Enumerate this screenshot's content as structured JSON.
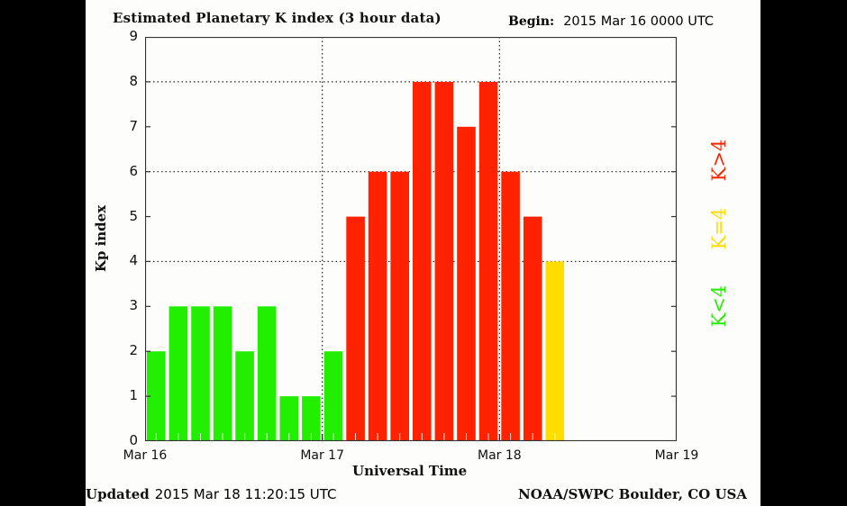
{
  "header": {
    "title": "Estimated Planetary K index (3 hour data)",
    "begin_label": "Begin:",
    "begin_value": "2015 Mar 16 0000 UTC"
  },
  "footer": {
    "updated_label": "Updated",
    "updated_value": "2015 Mar 18 11:20:15 UTC",
    "credit": "NOAA/SWPC Boulder, CO USA"
  },
  "legend": {
    "high": {
      "label": "K>4",
      "color": "#ff2200"
    },
    "equal": {
      "label": "K=4",
      "color": "#ffdd00"
    },
    "low": {
      "label": "K<4",
      "color": "#22ee00"
    }
  },
  "colors": {
    "low": "#22ee00",
    "equal": "#ffdd00",
    "high": "#ff2200",
    "background": "#fdfdfb",
    "frame": "#333333"
  },
  "chart_data": {
    "type": "bar",
    "title": "Estimated Planetary K index (3 hour data)",
    "xlabel": "Universal Time",
    "ylabel": "Kp index",
    "ylim": [
      0,
      9
    ],
    "yticks": [
      0,
      1,
      2,
      3,
      4,
      5,
      6,
      7,
      8,
      9
    ],
    "gridlines_y": [
      4,
      6,
      8
    ],
    "xticks": [
      "Mar 16",
      "Mar 17",
      "Mar 18",
      "Mar 19"
    ],
    "bar_interval_hours": 3,
    "categories": [
      "Mar 16 00",
      "Mar 16 03",
      "Mar 16 06",
      "Mar 16 09",
      "Mar 16 12",
      "Mar 16 15",
      "Mar 16 18",
      "Mar 16 21",
      "Mar 17 00",
      "Mar 17 03",
      "Mar 17 06",
      "Mar 17 09",
      "Mar 17 12",
      "Mar 17 15",
      "Mar 17 18",
      "Mar 17 21",
      "Mar 18 00",
      "Mar 18 03",
      "Mar 18 06"
    ],
    "values": [
      2,
      3,
      3,
      3,
      2,
      3,
      1,
      1,
      2,
      5,
      6,
      6,
      8,
      8,
      7,
      8,
      6,
      5,
      4
    ],
    "color_rule": "green if K<4, yellow if K=4, red if K>4",
    "legend_position": "right"
  }
}
